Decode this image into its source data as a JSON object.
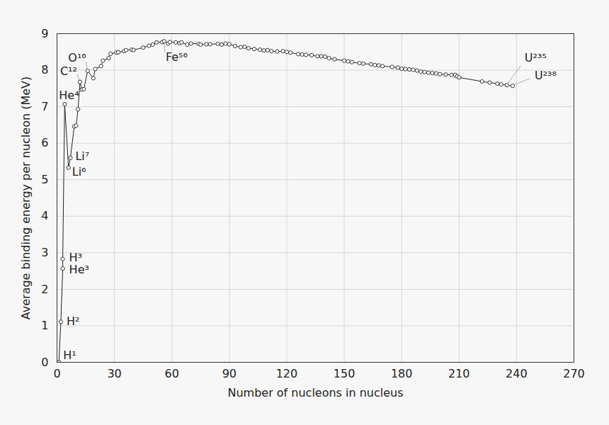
{
  "chart_data": {
    "type": "line",
    "x_label": "Number of nucleons in nucleus",
    "y_label": "Average binding energy per nucleon (MeV)",
    "x": [
      1,
      2,
      3,
      3,
      4,
      6,
      7,
      9,
      10,
      11,
      12,
      13,
      14,
      16,
      19,
      20,
      23,
      24,
      27,
      28,
      31,
      32,
      35,
      36,
      39,
      40,
      45,
      48,
      50,
      52,
      55,
      56,
      58,
      59,
      62,
      64,
      65,
      68,
      70,
      74,
      75,
      78,
      80,
      84,
      86,
      88,
      90,
      93,
      96,
      98,
      100,
      103,
      106,
      108,
      110,
      112,
      115,
      118,
      120,
      122,
      126,
      128,
      130,
      133,
      136,
      138,
      140,
      142,
      145,
      150,
      152,
      154,
      158,
      160,
      164,
      166,
      168,
      170,
      175,
      178,
      180,
      182,
      184,
      186,
      188,
      190,
      192,
      194,
      196,
      198,
      200,
      203,
      206,
      208,
      209,
      210,
      222,
      226,
      230,
      232,
      235,
      238
    ],
    "values": [
      0,
      1.11,
      2.57,
      2.83,
      7.07,
      5.33,
      5.6,
      6.46,
      6.48,
      6.93,
      7.68,
      7.47,
      7.48,
      7.98,
      7.78,
      8.03,
      8.11,
      8.26,
      8.33,
      8.45,
      8.48,
      8.49,
      8.52,
      8.55,
      8.56,
      8.55,
      8.62,
      8.67,
      8.7,
      8.76,
      8.77,
      8.79,
      8.73,
      8.77,
      8.76,
      8.74,
      8.76,
      8.7,
      8.73,
      8.72,
      8.7,
      8.71,
      8.71,
      8.72,
      8.7,
      8.73,
      8.71,
      8.66,
      8.63,
      8.64,
      8.6,
      8.58,
      8.56,
      8.54,
      8.55,
      8.52,
      8.51,
      8.52,
      8.5,
      8.48,
      8.44,
      8.43,
      8.42,
      8.41,
      8.38,
      8.38,
      8.37,
      8.33,
      8.3,
      8.26,
      8.24,
      8.22,
      8.19,
      8.18,
      8.16,
      8.14,
      8.13,
      8.11,
      8.09,
      8.07,
      8.04,
      8.03,
      8.02,
      8.01,
      7.99,
      7.96,
      7.95,
      7.93,
      7.92,
      7.91,
      7.89,
      7.88,
      7.87,
      7.87,
      7.83,
      7.8,
      7.69,
      7.66,
      7.63,
      7.61,
      7.59,
      7.57
    ],
    "color": "#222222",
    "marker": "circle",
    "xlim": [
      0,
      270
    ],
    "xticks": [
      0,
      30,
      60,
      90,
      120,
      150,
      180,
      210,
      240,
      270
    ],
    "ylim": [
      0,
      9
    ],
    "yticks": [
      0,
      1,
      2,
      3,
      4,
      5,
      6,
      7,
      8,
      9
    ],
    "grid": true,
    "annotations": [
      {
        "text": "H¹",
        "x": 1,
        "y": 0
      },
      {
        "text": "H²",
        "x": 2,
        "y": 1.11
      },
      {
        "text": "H³",
        "x": 3,
        "y": 2.83
      },
      {
        "text": "He³",
        "x": 3,
        "y": 2.57
      },
      {
        "text": "He⁴",
        "x": 4,
        "y": 7.07
      },
      {
        "text": "Li⁷",
        "x": 7,
        "y": 5.6
      },
      {
        "text": "Li⁶",
        "x": 6,
        "y": 5.33
      },
      {
        "text": "C¹²",
        "x": 12,
        "y": 7.68
      },
      {
        "text": "O¹⁶",
        "x": 16,
        "y": 7.98
      },
      {
        "text": "Fe⁵⁶",
        "x": 56,
        "y": 8.79
      },
      {
        "text": "U²³⁵",
        "x": 235,
        "y": 7.59
      },
      {
        "text": "U²³⁸",
        "x": 238,
        "y": 7.57
      }
    ]
  }
}
